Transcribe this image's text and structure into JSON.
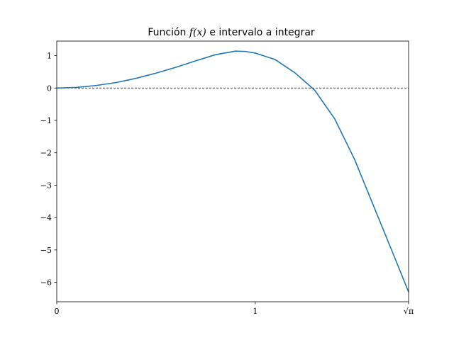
{
  "chart_data": {
    "type": "line",
    "title": {
      "prefix": "Función ",
      "math": "f(x)",
      "suffix": " e intervalo a integrar"
    },
    "xlabel": "",
    "ylabel": "",
    "xlim": [
      0,
      1.7724539
    ],
    "ylim": [
      -6.6,
      1.45
    ],
    "x_ticks": [
      {
        "value": 0,
        "label": "0"
      },
      {
        "value": 1,
        "label": "1"
      },
      {
        "value": 1.7724539,
        "label": "√π"
      }
    ],
    "y_ticks": [
      {
        "value": 1,
        "label": "1"
      },
      {
        "value": 0,
        "label": "0"
      },
      {
        "value": -1,
        "label": "−1"
      },
      {
        "value": -2,
        "label": "−2"
      },
      {
        "value": -3,
        "label": "−3"
      },
      {
        "value": -4,
        "label": "−4"
      },
      {
        "value": -5,
        "label": "−5"
      },
      {
        "value": -6,
        "label": "−6"
      }
    ],
    "reference_line": {
      "y": 0,
      "style": "dashed",
      "color": "#000000"
    },
    "grid": false,
    "series": [
      {
        "color": "#1f77b4",
        "x": [
          0,
          0.1,
          0.2,
          0.3,
          0.4,
          0.5,
          0.6,
          0.7,
          0.8,
          0.9,
          0.95,
          1.0,
          1.1,
          1.2,
          1.25,
          1.3,
          1.4,
          1.5,
          1.6,
          1.7,
          1.7724539
        ],
        "y": [
          0,
          0.02,
          0.08,
          0.17,
          0.3,
          0.46,
          0.64,
          0.84,
          1.03,
          1.14,
          1.13,
          1.08,
          0.88,
          0.47,
          0.2,
          -0.07,
          -0.95,
          -2.2,
          -3.7,
          -5.2,
          -6.3
        ]
      }
    ]
  }
}
